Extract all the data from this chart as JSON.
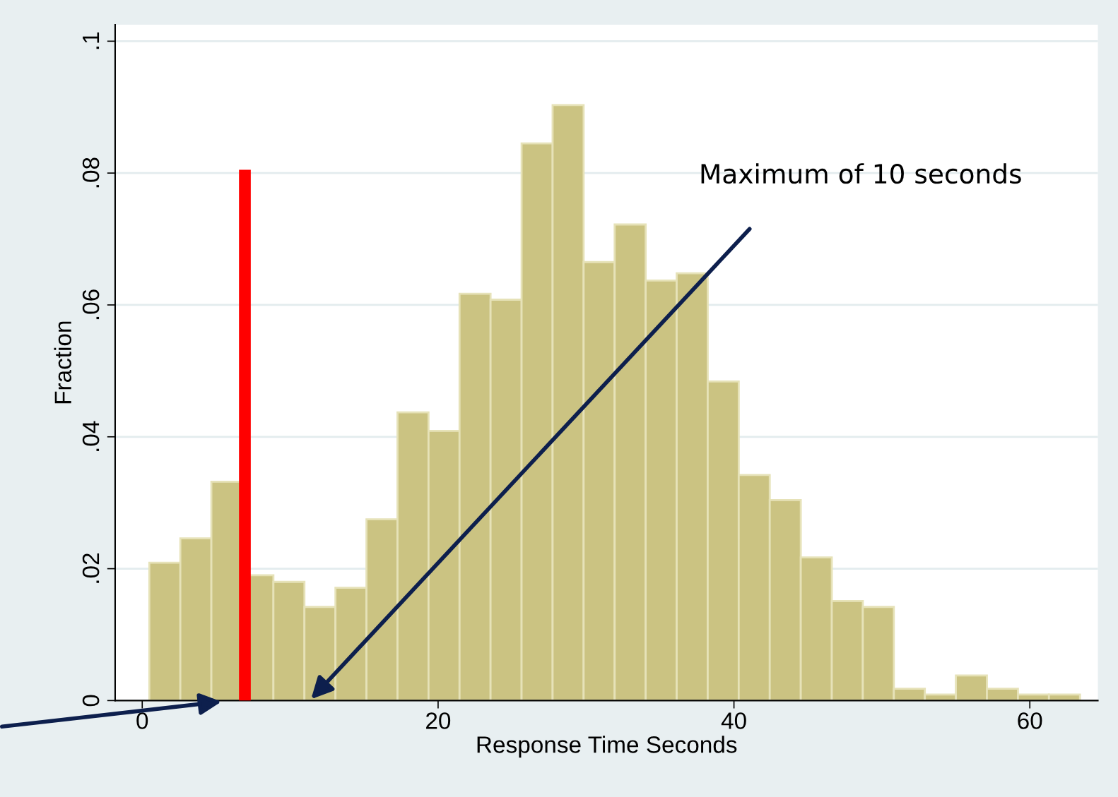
{
  "chart_data": {
    "type": "histogram",
    "xlabel": "Response Time Seconds",
    "ylabel": "Fraction",
    "bins": [
      0.48,
      2.577,
      4.674,
      6.771,
      8.868,
      10.965,
      13.062,
      15.159,
      17.256,
      19.353,
      21.45,
      23.547,
      25.644,
      27.741,
      29.838,
      31.935,
      34.032,
      36.129,
      38.226,
      40.323,
      42.42,
      44.517,
      46.614,
      48.711,
      50.808,
      52.905,
      55.002,
      57.099,
      59.196,
      61.293,
      63.39
    ],
    "values": [
      0.0209,
      0.0246,
      0.0332,
      0.019,
      0.018,
      0.0142,
      0.0171,
      0.0275,
      0.0437,
      0.0409,
      0.0617,
      0.0608,
      0.0845,
      0.0903,
      0.0665,
      0.0722,
      0.0637,
      0.0648,
      0.0484,
      0.0342,
      0.0304,
      0.0217,
      0.0151,
      0.0142,
      0.0018,
      0.0009,
      0.0038,
      0.0018,
      0.0009,
      0.0009
    ],
    "color": "#cbc382",
    "series": [
      {
        "type": "line",
        "x": [
          6.94,
          6.94
        ],
        "values": [
          0,
          0.0805
        ],
        "color": "#ff0000"
      }
    ],
    "xlim": [
      -1.83,
      64.6
    ],
    "ylim": [
      0,
      0.1025
    ],
    "xticks": [
      0,
      20,
      40,
      60
    ],
    "yticks": [
      {
        "value": 0,
        "label": "0"
      },
      {
        "value": 0.02,
        "label": ".02"
      },
      {
        "value": 0.04,
        "label": ".04"
      },
      {
        "value": 0.06,
        "label": ".06"
      },
      {
        "value": 0.08,
        "label": ".08"
      },
      {
        "value": 0.1,
        "label": ".1"
      }
    ],
    "grid": "y",
    "annotations": [
      "Maximum of 10 seconds"
    ]
  }
}
